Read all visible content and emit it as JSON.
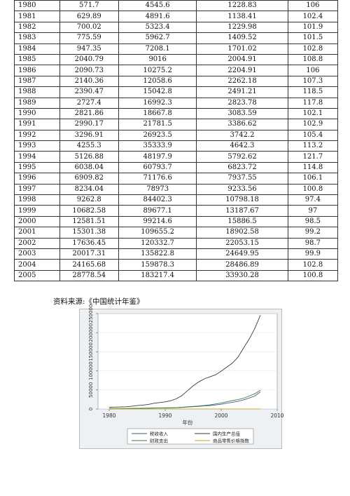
{
  "table": {
    "rows": [
      [
        "1980",
        "571.7",
        "4545.6",
        "1228.83",
        "106"
      ],
      [
        "1981",
        "629.89",
        "4891.6",
        "1138.41",
        "102.4"
      ],
      [
        "1982",
        "700.02",
        "5323.4",
        "1229.98",
        "101.9"
      ],
      [
        "1983",
        "775.59",
        "5962.7",
        "1409.52",
        "101.5"
      ],
      [
        "1984",
        "947.35",
        "7208.1",
        "1701.02",
        "102.8"
      ],
      [
        "1985",
        "2040.79",
        "9016",
        "2004.91",
        "108.8"
      ],
      [
        "1986",
        "2090.73",
        "10275.2",
        "2204.91",
        "106"
      ],
      [
        "1987",
        "2140.36",
        "12058.6",
        "2262.18",
        "107.3"
      ],
      [
        "1988",
        "2390.47",
        "15042.8",
        "2491.21",
        "118.5"
      ],
      [
        "1989",
        "2727.4",
        "16992.3",
        "2823.78",
        "117.8"
      ],
      [
        "1990",
        "2821.86",
        "18667.8",
        "3083.59",
        "102.1"
      ],
      [
        "1991",
        "2990.17",
        "21781.5",
        "3386.62",
        "102.9"
      ],
      [
        "1992",
        "3296.91",
        "26923.5",
        "3742.2",
        "105.4"
      ],
      [
        "1993",
        "4255.3",
        "35333.9",
        "4642.3",
        "113.2"
      ],
      [
        "1994",
        "5126.88",
        "48197.9",
        "5792.62",
        "121.7"
      ],
      [
        "1995",
        "6038.04",
        "60793.7",
        "6823.72",
        "114.8"
      ],
      [
        "1996",
        "6909.82",
        "71176.6",
        "7937.55",
        "106.1"
      ],
      [
        "1997",
        "8234.04",
        "78973",
        "9233.56",
        "100.8"
      ],
      [
        "1998",
        "9262.8",
        "84402.3",
        "10798.18",
        "97.4"
      ],
      [
        "1999",
        "10682.58",
        "89677.1",
        "13187.67",
        "97"
      ],
      [
        "2000",
        "12581.51",
        "99214.6",
        "15886.5",
        "98.5"
      ],
      [
        "2001",
        "15301.38",
        "109655.2",
        "18902.58",
        "99.2"
      ],
      [
        "2002",
        "17636.45",
        "120332.7",
        "22053.15",
        "98.7"
      ],
      [
        "2003",
        "20017.31",
        "135822.8",
        "24649.95",
        "99.9"
      ],
      [
        "2004",
        "24165.68",
        "159878.3",
        "28486.89",
        "102.8"
      ],
      [
        "2005",
        "28778.54",
        "183217.4",
        "33930.28",
        "100.8"
      ]
    ]
  },
  "source_note": "资料来源:《中国统计年鉴》",
  "chart_data": {
    "type": "line",
    "xlabel": "年份",
    "x_ticks": [
      "1980",
      "1990",
      "2000",
      "2010"
    ],
    "y_ticks": [
      "0",
      "50000",
      "100000",
      "150000",
      "200000",
      "250000"
    ],
    "xlim": [
      1978,
      2010
    ],
    "ylim": [
      0,
      250000
    ],
    "legend_position": "bottom",
    "series": [
      {
        "name": "税收收入",
        "color": "#4a5a8a",
        "x": [
          1980,
          1981,
          1982,
          1983,
          1984,
          1985,
          1986,
          1987,
          1988,
          1989,
          1990,
          1991,
          1992,
          1993,
          1994,
          1995,
          1996,
          1997,
          1998,
          1999,
          2000,
          2001,
          2002,
          2003,
          2004,
          2005,
          2006,
          2007
        ],
        "values": [
          571.7,
          629.89,
          700.02,
          775.59,
          947.35,
          2040.79,
          2090.73,
          2140.36,
          2390.47,
          2727.4,
          2821.86,
          2990.17,
          3296.91,
          4255.3,
          5126.88,
          6038.04,
          6909.82,
          8234.04,
          9262.8,
          10682.58,
          12581.51,
          15301.38,
          17636.45,
          20017.31,
          24165.68,
          28778.54,
          34000,
          45000
        ]
      },
      {
        "name": "国内生产总值",
        "color": "#3a3a3a",
        "x": [
          1980,
          1981,
          1982,
          1983,
          1984,
          1985,
          1986,
          1987,
          1988,
          1989,
          1990,
          1991,
          1992,
          1993,
          1994,
          1995,
          1996,
          1997,
          1998,
          1999,
          2000,
          2001,
          2002,
          2003,
          2004,
          2005,
          2006,
          2007
        ],
        "values": [
          4545.6,
          4891.6,
          5323.4,
          5962.7,
          7208.1,
          9016,
          10275.2,
          12058.6,
          15042.8,
          16992.3,
          18667.8,
          21781.5,
          26923.5,
          35333.9,
          48197.9,
          60793.7,
          71176.6,
          78973,
          84402.3,
          89677.1,
          99214.6,
          109655.2,
          120332.7,
          135822.8,
          159878.3,
          183217.4,
          211000,
          246000
        ]
      },
      {
        "name": "财政支出",
        "color": "#3d7a4a",
        "x": [
          1980,
          1981,
          1982,
          1983,
          1984,
          1985,
          1986,
          1987,
          1988,
          1989,
          1990,
          1991,
          1992,
          1993,
          1994,
          1995,
          1996,
          1997,
          1998,
          1999,
          2000,
          2001,
          2002,
          2003,
          2004,
          2005,
          2006,
          2007
        ],
        "values": [
          1228.83,
          1138.41,
          1229.98,
          1409.52,
          1701.02,
          2004.91,
          2204.91,
          2262.18,
          2491.21,
          2823.78,
          3083.59,
          3386.62,
          3742.2,
          4642.3,
          5792.62,
          6823.72,
          7937.55,
          9233.56,
          10798.18,
          13187.67,
          15886.5,
          18902.58,
          22053.15,
          24649.95,
          28486.89,
          33930.28,
          40000,
          49000
        ]
      },
      {
        "name": "商品零售价格指数",
        "color": "#c9a227",
        "x": [
          1980,
          1981,
          1982,
          1983,
          1984,
          1985,
          1986,
          1987,
          1988,
          1989,
          1990,
          1991,
          1992,
          1993,
          1994,
          1995,
          1996,
          1997,
          1998,
          1999,
          2000,
          2001,
          2002,
          2003,
          2004,
          2005,
          2006,
          2007
        ],
        "values": [
          106,
          102.4,
          101.9,
          101.5,
          102.8,
          108.8,
          106,
          107.3,
          118.5,
          117.8,
          102.1,
          102.9,
          105.4,
          113.2,
          121.7,
          114.8,
          106.1,
          100.8,
          97.4,
          97,
          98.5,
          99.2,
          98.7,
          99.9,
          102.8,
          100.8,
          101,
          103.8
        ]
      }
    ]
  }
}
